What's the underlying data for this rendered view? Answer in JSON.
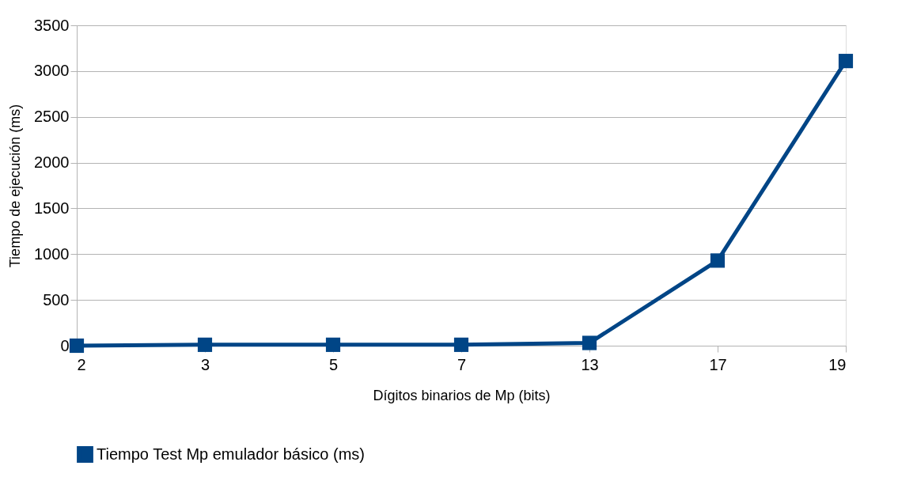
{
  "chart_data": {
    "type": "line",
    "xlabel": "Dígitos binarios de Mp (bits)",
    "ylabel": "Tiempo de ejecución (ms)",
    "categories": [
      "2",
      "3",
      "5",
      "7",
      "13",
      "17",
      "19"
    ],
    "series": [
      {
        "name": "Tiempo Test Mp emulador básico (ms)",
        "color": "#004586",
        "values": [
          0,
          10,
          10,
          10,
          30,
          930,
          3110
        ]
      }
    ],
    "ylim": [
      0,
      3500
    ],
    "yticks": [
      0,
      500,
      1000,
      1500,
      2000,
      2500,
      3000,
      3500
    ],
    "grid": "y",
    "legend": "bottom",
    "marker": "square",
    "line_style": "solid"
  }
}
